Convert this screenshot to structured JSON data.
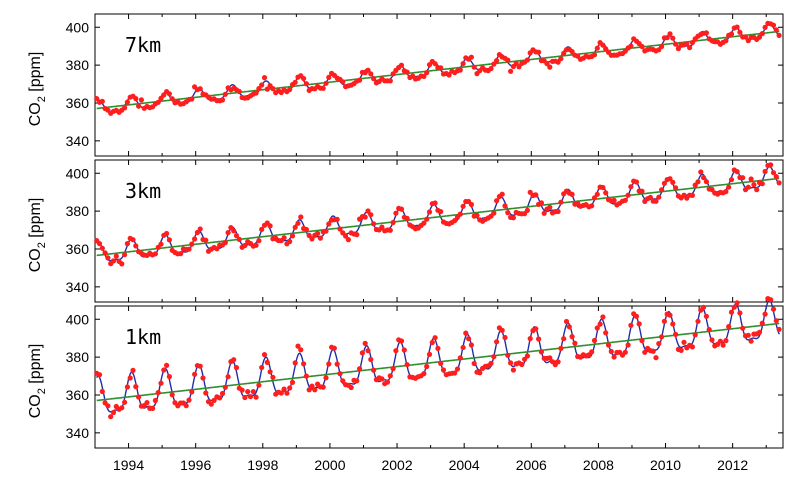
{
  "chart_data": [
    {
      "type": "scatter",
      "title": "7km",
      "ylabel": "CO",
      "ylabel_sub": "2",
      "ylabel_unit": " [ppm]",
      "xlim": [
        1993.0,
        2013.5
      ],
      "ylim": [
        332,
        407
      ],
      "yticks": [
        340,
        360,
        380,
        400
      ],
      "base": 357.0,
      "slope": 2.0,
      "amplitude": 3.3,
      "series": [
        {
          "name": "observations",
          "style": "red-dots",
          "color": "#ff1e1e"
        },
        {
          "name": "fit",
          "style": "line",
          "color": "#1f2fa6"
        },
        {
          "name": "trend",
          "style": "line",
          "color": "#2f8f2f"
        }
      ]
    },
    {
      "type": "scatter",
      "title": "3km",
      "ylabel": "CO",
      "ylabel_sub": "2",
      "ylabel_unit": " [ppm]",
      "xlim": [
        1993.0,
        2013.5
      ],
      "ylim": [
        332,
        407
      ],
      "yticks": [
        340,
        360,
        380,
        400
      ],
      "base": 356.5,
      "slope": 2.0,
      "amplitude": 5.0,
      "series": [
        {
          "name": "observations",
          "style": "red-dots",
          "color": "#ff1e1e"
        },
        {
          "name": "fit",
          "style": "line",
          "color": "#1f2fa6"
        },
        {
          "name": "trend",
          "style": "line",
          "color": "#2f8f2f"
        }
      ]
    },
    {
      "type": "scatter",
      "title": "1km",
      "ylabel": "CO",
      "ylabel_sub": "2",
      "ylabel_unit": " [ppm]",
      "xlim": [
        1993.0,
        2013.5
      ],
      "ylim": [
        332,
        407
      ],
      "yticks": [
        340,
        360,
        380,
        400
      ],
      "base": 357.0,
      "slope": 2.0,
      "amplitude": 9.5,
      "series": [
        {
          "name": "observations",
          "style": "red-dots",
          "color": "#ff1e1e"
        },
        {
          "name": "fit",
          "style": "line",
          "color": "#1f2fa6"
        },
        {
          "name": "trend",
          "style": "line",
          "color": "#2f8f2f"
        }
      ]
    }
  ],
  "x_tick_labels": [
    "1994",
    "1996",
    "1998",
    "2000",
    "2002",
    "2004",
    "2006",
    "2008",
    "2010",
    "2012"
  ],
  "x_tick_values": [
    1994,
    1996,
    1998,
    2000,
    2002,
    2004,
    2006,
    2008,
    2010,
    2012
  ]
}
